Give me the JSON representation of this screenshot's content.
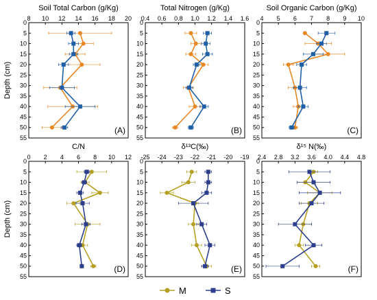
{
  "colors": {
    "M": "#e88824",
    "S": "#1f5fa6",
    "M_cn": "#b5a024",
    "S_cn": "#2d3f8c"
  },
  "legend": {
    "items": [
      {
        "key": "M",
        "label": "M"
      },
      {
        "key": "S",
        "label": "S"
      }
    ],
    "placement": "bottom-center"
  },
  "chart_data": [
    {
      "type": "line",
      "label": "(A)",
      "title": "Soil Total Carbon (g/Kg)",
      "ylabel": "Depth (cm)",
      "xlim": [
        8,
        20
      ],
      "xticks": [
        "8",
        "10",
        "12",
        "14",
        "16",
        "18",
        "20"
      ],
      "ylim": [
        0,
        55
      ],
      "yticks": [
        "0",
        "5",
        "10",
        "15",
        "20",
        "25",
        "30",
        "35",
        "40",
        "45",
        "50",
        "55"
      ],
      "color_set": "default",
      "series": [
        {
          "key": "M",
          "points": [
            {
              "y": 5,
              "x": 14.2,
              "err": 3.8
            },
            {
              "y": 10,
              "x": 14.6,
              "err": 1.2
            },
            {
              "y": 15,
              "x": 13.6,
              "err": 1.2
            },
            {
              "y": 20,
              "x": 14.4,
              "err": 2.2
            },
            {
              "y": 31,
              "x": 11.8,
              "err": 2.0
            },
            {
              "y": 40,
              "x": 13.3,
              "err": 3.0
            },
            {
              "y": 50,
              "x": 10.8,
              "err": 1.2
            }
          ]
        },
        {
          "key": "S",
          "points": [
            {
              "y": 5,
              "x": 13.1,
              "err": 0.5
            },
            {
              "y": 10,
              "x": 13.4,
              "err": 0.6
            },
            {
              "y": 15,
              "x": 13.4,
              "err": 0.5
            },
            {
              "y": 20,
              "x": 12.2,
              "err": 0.6
            },
            {
              "y": 31,
              "x": 12.0,
              "err": 1.5
            },
            {
              "y": 40,
              "x": 14.2,
              "err": 1.8
            },
            {
              "y": 50,
              "x": 12.3,
              "err": 0.4
            }
          ]
        }
      ]
    },
    {
      "type": "line",
      "label": "(B)",
      "title": "Total Nitrogen (g/Kg)",
      "ylabel": "",
      "xlim": [
        0.4,
        1.6
      ],
      "xticks": [
        "0.4",
        "0.6",
        "0.8",
        "1.0",
        "1.2",
        "1.4",
        "1.6"
      ],
      "ylim": [
        0,
        55
      ],
      "yticks": [
        "0",
        "5",
        "10",
        "15",
        "20",
        "25",
        "30",
        "35",
        "40",
        "45",
        "50",
        "55"
      ],
      "color_set": "default",
      "series": [
        {
          "key": "M",
          "points": [
            {
              "y": 5,
              "x": 0.95,
              "err": 0.07
            },
            {
              "y": 10,
              "x": 1.01,
              "err": 0.06
            },
            {
              "y": 15,
              "x": 0.95,
              "err": 0.06
            },
            {
              "y": 20,
              "x": 1.1,
              "err": 0.06
            },
            {
              "y": 31,
              "x": 0.92,
              "err": 0.06
            },
            {
              "y": 40,
              "x": 1.0,
              "err": 0.07
            },
            {
              "y": 50,
              "x": 0.76,
              "err": 0.03
            }
          ]
        },
        {
          "key": "S",
          "points": [
            {
              "y": 5,
              "x": 1.15,
              "err": 0.05
            },
            {
              "y": 10,
              "x": 1.13,
              "err": 0.05
            },
            {
              "y": 15,
              "x": 1.15,
              "err": 0.06
            },
            {
              "y": 20,
              "x": 1.02,
              "err": 0.04
            },
            {
              "y": 31,
              "x": 0.93,
              "err": 0.04
            },
            {
              "y": 40,
              "x": 1.11,
              "err": 0.05
            },
            {
              "y": 50,
              "x": 0.95,
              "err": 0.03
            }
          ]
        }
      ]
    },
    {
      "type": "line",
      "label": "(C)",
      "title": "Soil Organic Carbon (g/Kg)",
      "ylabel": "",
      "xlim": [
        4,
        10
      ],
      "xticks": [
        "4",
        "5",
        "6",
        "7",
        "8",
        "9",
        "10"
      ],
      "ylim": [
        0,
        55
      ],
      "yticks": [
        "0",
        "5",
        "10",
        "15",
        "20",
        "25",
        "30",
        "35",
        "40",
        "45",
        "50",
        "55"
      ],
      "color_set": "default",
      "series": [
        {
          "key": "M",
          "points": [
            {
              "y": 5,
              "x": 6.6,
              "err": 0.08
            },
            {
              "y": 10,
              "x": 7.4,
              "err": 0.8
            },
            {
              "y": 15,
              "x": 8.0,
              "err": 1.0
            },
            {
              "y": 20,
              "x": 5.6,
              "err": 0.3
            },
            {
              "y": 31,
              "x": 6.0,
              "err": 0.4
            },
            {
              "y": 40,
              "x": 6.2,
              "err": 0.3
            },
            {
              "y": 50,
              "x": 6.0,
              "err": 0.15
            }
          ]
        },
        {
          "key": "S",
          "points": [
            {
              "y": 5,
              "x": 7.9,
              "err": 0.5
            },
            {
              "y": 10,
              "x": 7.6,
              "err": 0.3
            },
            {
              "y": 15,
              "x": 7.1,
              "err": 0.6
            },
            {
              "y": 20,
              "x": 6.4,
              "err": 0.3
            },
            {
              "y": 31,
              "x": 6.3,
              "err": 0.4
            },
            {
              "y": 40,
              "x": 6.5,
              "err": 0.3
            },
            {
              "y": 50,
              "x": 5.8,
              "err": 0.15
            }
          ]
        }
      ]
    },
    {
      "type": "line",
      "label": "(D)",
      "title": "C/N",
      "ylabel": "Depth (cm)",
      "xlim": [
        0,
        12
      ],
      "xticks": [
        "0",
        "2",
        "4",
        "6",
        "8",
        "10",
        "12"
      ],
      "ylim": [
        0,
        55
      ],
      "yticks": [
        "0",
        "5",
        "10",
        "15",
        "20",
        "25",
        "30",
        "35",
        "40",
        "45",
        "50",
        "55"
      ],
      "color_set": "cn",
      "series": [
        {
          "key": "M",
          "points": [
            {
              "y": 5,
              "x": 7.6,
              "err": 1.8
            },
            {
              "y": 10,
              "x": 6.8,
              "err": 0.5
            },
            {
              "y": 15,
              "x": 8.6,
              "err": 1.0
            },
            {
              "y": 20,
              "x": 5.4,
              "err": 0.8
            },
            {
              "y": 30,
              "x": 7.1,
              "err": 1.5
            },
            {
              "y": 40,
              "x": 6.5,
              "err": 0.6
            },
            {
              "y": 50,
              "x": 7.8,
              "err": 0.3
            }
          ]
        },
        {
          "key": "S",
          "points": [
            {
              "y": 5,
              "x": 7.0,
              "err": 0.3
            },
            {
              "y": 10,
              "x": 6.7,
              "err": 0.3
            },
            {
              "y": 15,
              "x": 6.2,
              "err": 0.4
            },
            {
              "y": 20,
              "x": 6.5,
              "err": 0.8
            },
            {
              "y": 30,
              "x": 6.9,
              "err": 0.5
            },
            {
              "y": 40,
              "x": 6.1,
              "err": 0.3
            },
            {
              "y": 50,
              "x": 6.4,
              "err": 0.2
            }
          ]
        }
      ]
    },
    {
      "type": "line",
      "label": "(E)",
      "title": "δ¹³C(‰)",
      "ylabel": "",
      "xlim": [
        -25,
        -19
      ],
      "xticks": [
        "-25",
        "-24",
        "-23",
        "-22",
        "-21",
        "-20",
        "-19"
      ],
      "ylim": [
        0,
        55
      ],
      "yticks": [
        "0",
        "5",
        "10",
        "15",
        "20",
        "25",
        "30",
        "35",
        "40",
        "45",
        "50",
        "55"
      ],
      "color_set": "cn",
      "series": [
        {
          "key": "M",
          "points": [
            {
              "y": 5,
              "x": -22.2,
              "err": 0.3
            },
            {
              "y": 10,
              "x": -22.4,
              "err": 0.4
            },
            {
              "y": 15,
              "x": -23.7,
              "err": 0.4
            },
            {
              "y": 20,
              "x": -22.0,
              "err": 0.2
            },
            {
              "y": 30,
              "x": -22.1,
              "err": 0.3
            },
            {
              "y": 40,
              "x": -21.9,
              "err": 0.3
            },
            {
              "y": 50,
              "x": -21.3,
              "err": 0.3
            }
          ]
        },
        {
          "key": "S",
          "points": [
            {
              "y": 5,
              "x": -21.2,
              "err": 0.2
            },
            {
              "y": 10,
              "x": -21.2,
              "err": 0.2
            },
            {
              "y": 15,
              "x": -21.3,
              "err": 0.3
            },
            {
              "y": 20,
              "x": -22.1,
              "err": 0.9
            },
            {
              "y": 30,
              "x": -21.6,
              "err": 0.3
            },
            {
              "y": 40,
              "x": -21.1,
              "err": 0.3
            },
            {
              "y": 50,
              "x": -21.4,
              "err": 0.2
            }
          ]
        }
      ]
    },
    {
      "type": "line",
      "label": "(F)",
      "title": "δ¹⁵ N(‰)",
      "ylabel": "",
      "xlim": [
        2.4,
        4.8
      ],
      "xticks": [
        "2.4",
        "2.8",
        "3.2",
        "3.6",
        "4.0",
        "4.4",
        "4.8"
      ],
      "ylim": [
        0,
        55
      ],
      "yticks": [
        "0",
        "5",
        "10",
        "15",
        "20",
        "25",
        "30",
        "35",
        "40",
        "45",
        "50",
        "55"
      ],
      "color_set": "cn",
      "series": [
        {
          "key": "M",
          "points": [
            {
              "y": 5,
              "x": 3.65,
              "err": 0.1
            },
            {
              "y": 10,
              "x": 3.45,
              "err": 0.2
            },
            {
              "y": 15,
              "x": 3.8,
              "err": 0.3
            },
            {
              "y": 20,
              "x": 3.55,
              "err": 0.2
            },
            {
              "y": 30,
              "x": 3.4,
              "err": 0.2
            },
            {
              "y": 40,
              "x": 3.3,
              "err": 0.1
            },
            {
              "y": 50,
              "x": 3.7,
              "err": 0.1
            }
          ]
        },
        {
          "key": "S",
          "points": [
            {
              "y": 5,
              "x": 3.55,
              "err": 0.5
            },
            {
              "y": 10,
              "x": 3.65,
              "err": 0.4
            },
            {
              "y": 15,
              "x": 3.8,
              "err": 0.5
            },
            {
              "y": 20,
              "x": 3.6,
              "err": 0.3
            },
            {
              "y": 30,
              "x": 3.2,
              "err": 0.4
            },
            {
              "y": 40,
              "x": 3.65,
              "err": 0.2
            },
            {
              "y": 50,
              "x": 2.9,
              "err": 0.4
            }
          ]
        }
      ]
    }
  ]
}
